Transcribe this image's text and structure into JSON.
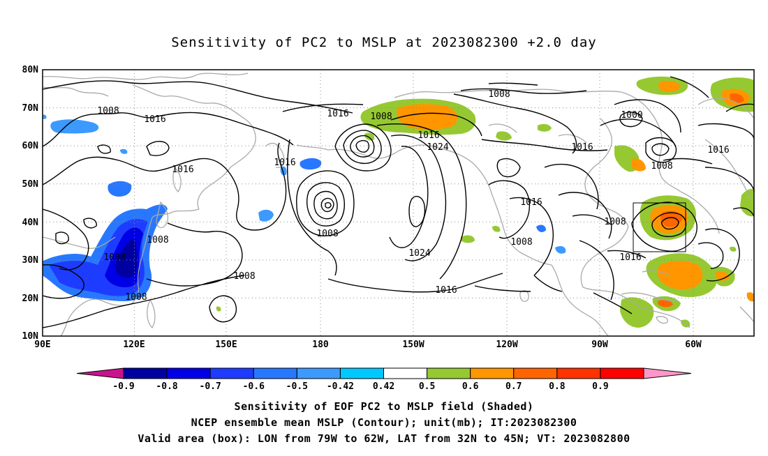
{
  "title": "Sensitivity of PC2 to MSLP at 2023082300 +2.0 day",
  "map": {
    "projection": "cylindrical equidistant",
    "lon_range": [
      "90E",
      "60W"
    ],
    "lat_range": [
      "10N",
      "80N"
    ],
    "lat_labels": [
      "80N",
      "70N",
      "60N",
      "50N",
      "40N",
      "30N",
      "20N",
      "10N"
    ],
    "lon_labels": [
      "90E",
      "120E",
      "150E",
      "180",
      "150W",
      "120W",
      "90W",
      "60W"
    ],
    "grid": "dotted gray",
    "coastline_color": "#a9a9a9",
    "contour_labels": [
      "1008",
      "1016",
      "1016",
      "1016",
      "1008",
      "1008",
      "1008",
      "1008",
      "1016",
      "1008",
      "1016",
      "1024",
      "1008",
      "1024",
      "1016",
      "1016",
      "1008",
      "1000",
      "1016",
      "1008",
      "1016",
      "1016",
      "1008",
      "1008"
    ],
    "valid_box": {
      "lon": "79W to 62W",
      "lat": "32N to 45N"
    }
  },
  "colorbar": {
    "labels": [
      "-0.9",
      "-0.8",
      "-0.7",
      "-0.6",
      "-0.5",
      "-0.42",
      "0.42",
      "0.5",
      "0.6",
      "0.7",
      "0.8",
      "0.9"
    ],
    "colors": [
      "#c8148c",
      "#0000a0",
      "#0000e6",
      "#1e3cff",
      "#2878ff",
      "#3c9aff",
      "#00c8ff",
      "#ffffff",
      "#96c832",
      "#ff9600",
      "#ff6400",
      "#ff3200",
      "#ff0000",
      "#ff96c8"
    ]
  },
  "captions": {
    "line1": "Sensitivity of EOF PC2 to MSLP field (Shaded)",
    "line2": "NCEP ensemble mean MSLP (Contour); unit(mb); IT:2023082300",
    "line3": "Valid area (box): LON from 79W to 62W, LAT from 32N to 45N; VT: 2023082800"
  }
}
